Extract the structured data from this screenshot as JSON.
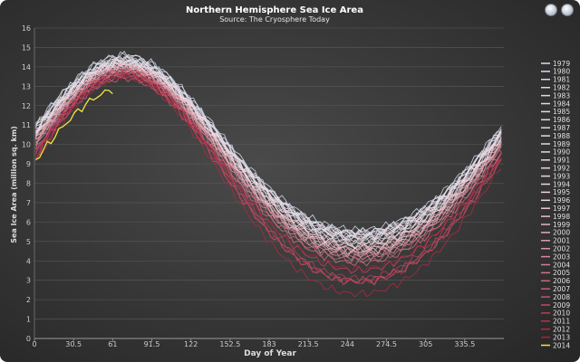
{
  "chart_data": {
    "type": "line",
    "title": "Northern Hemisphere Sea Ice Area",
    "subtitle": "Source: The Cryosphere Today",
    "xlabel": "Day of Year",
    "ylabel": "Sea Ice Area (million sq. km)",
    "xlim": [
      0,
      366
    ],
    "ylim": [
      0,
      16
    ],
    "x_ticks": [
      "0",
      "30.5",
      "61",
      "91.5",
      "122",
      "152.5",
      "183",
      "213.5",
      "244",
      "274.5",
      "305",
      "335.5"
    ],
    "y_ticks": [
      "0",
      "1",
      "2",
      "3",
      "4",
      "5",
      "6",
      "7",
      "8",
      "9",
      "10",
      "11",
      "12",
      "13",
      "14",
      "15",
      "16"
    ],
    "grid": true,
    "legend_position": "right",
    "colors": {
      "oldest": "#cfe0f0",
      "mid": "#f4d4dc",
      "newest": "#b01e3c",
      "highlight": "#f2e640"
    },
    "series": [
      {
        "name": "1979",
        "min": 5.4,
        "max": 14.4
      },
      {
        "name": "1980",
        "min": 5.6,
        "max": 14.6
      },
      {
        "name": "1981",
        "min": 5.2,
        "max": 14.2
      },
      {
        "name": "1982",
        "min": 5.5,
        "max": 14.5
      },
      {
        "name": "1983",
        "min": 5.4,
        "max": 14.3
      },
      {
        "name": "1984",
        "min": 5.1,
        "max": 14.2
      },
      {
        "name": "1985",
        "min": 5.2,
        "max": 14.3
      },
      {
        "name": "1986",
        "min": 5.5,
        "max": 14.4
      },
      {
        "name": "1987",
        "min": 5.3,
        "max": 14.6
      },
      {
        "name": "1988",
        "min": 5.2,
        "max": 14.4
      },
      {
        "name": "1989",
        "min": 5.0,
        "max": 14.3
      },
      {
        "name": "1990",
        "min": 4.8,
        "max": 14.2
      },
      {
        "name": "1991",
        "min": 4.9,
        "max": 14.1
      },
      {
        "name": "1992",
        "min": 5.3,
        "max": 14.3
      },
      {
        "name": "1993",
        "min": 4.7,
        "max": 14.2
      },
      {
        "name": "1994",
        "min": 5.0,
        "max": 14.1
      },
      {
        "name": "1995",
        "min": 4.5,
        "max": 13.9
      },
      {
        "name": "1996",
        "min": 5.4,
        "max": 14.1
      },
      {
        "name": "1997",
        "min": 4.8,
        "max": 14.0
      },
      {
        "name": "1998",
        "min": 4.6,
        "max": 14.0
      },
      {
        "name": "1999",
        "min": 4.4,
        "max": 14.0
      },
      {
        "name": "2000",
        "min": 4.5,
        "max": 13.8
      },
      {
        "name": "2001",
        "min": 4.6,
        "max": 13.9
      },
      {
        "name": "2002",
        "min": 4.2,
        "max": 13.8
      },
      {
        "name": "2003",
        "min": 4.3,
        "max": 13.9
      },
      {
        "name": "2004",
        "min": 4.2,
        "max": 13.7
      },
      {
        "name": "2005",
        "min": 3.9,
        "max": 13.6
      },
      {
        "name": "2006",
        "min": 4.0,
        "max": 13.4
      },
      {
        "name": "2007",
        "min": 2.9,
        "max": 13.5
      },
      {
        "name": "2008",
        "min": 3.0,
        "max": 13.8
      },
      {
        "name": "2009",
        "min": 3.5,
        "max": 13.7
      },
      {
        "name": "2010",
        "min": 3.1,
        "max": 13.8
      },
      {
        "name": "2011",
        "min": 2.9,
        "max": 13.6
      },
      {
        "name": "2012",
        "min": 2.3,
        "max": 13.5
      },
      {
        "name": "2013",
        "min": 3.6,
        "max": 13.5
      },
      {
        "name": "2014",
        "min": null,
        "max": 12.9,
        "x_end": 62
      }
    ]
  }
}
